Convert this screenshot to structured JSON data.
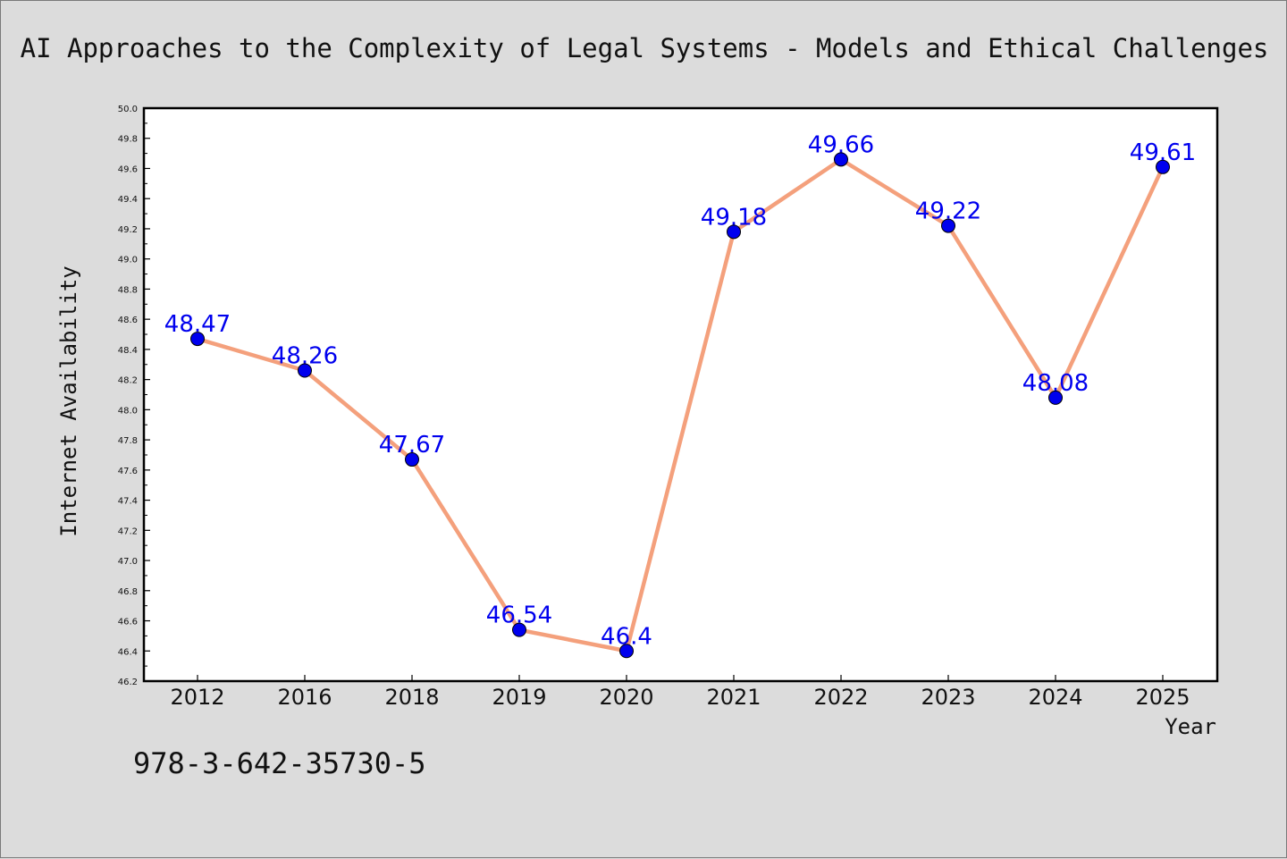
{
  "chart_data": {
    "type": "line",
    "title": "AI Approaches to the Complexity of Legal Systems - Models and Ethical Challenges",
    "xlabel": "Year",
    "ylabel": "Internet Availability",
    "annotation": "978-3-642-35730-5",
    "categories": [
      "2012",
      "2016",
      "2018",
      "2019",
      "2020",
      "2021",
      "2022",
      "2023",
      "2024",
      "2025"
    ],
    "values": [
      48.47,
      48.26,
      47.67,
      46.54,
      46.4,
      49.18,
      49.66,
      49.22,
      48.08,
      49.61
    ],
    "data_labels": [
      "48.47",
      "48.26",
      "47.67",
      "46.54",
      "46.4",
      "49.18",
      "49.66",
      "49.22",
      "48.08",
      "49.61"
    ],
    "ylim": [
      46.2,
      50.0
    ],
    "yticks": [
      "46.2",
      "46.4",
      "46.6",
      "46.8",
      "47.0",
      "47.2",
      "47.4",
      "47.6",
      "47.8",
      "48.0",
      "48.2",
      "48.4",
      "48.6",
      "48.8",
      "49.0",
      "49.2",
      "49.4",
      "49.6",
      "49.8",
      "50.0"
    ],
    "grid": false,
    "legend": "none",
    "colors": {
      "line": "#f4a07c",
      "marker": "#0000ee",
      "label": "#0000ee",
      "background": "#dcdcdc",
      "plot_background": "#ffffff"
    }
  }
}
